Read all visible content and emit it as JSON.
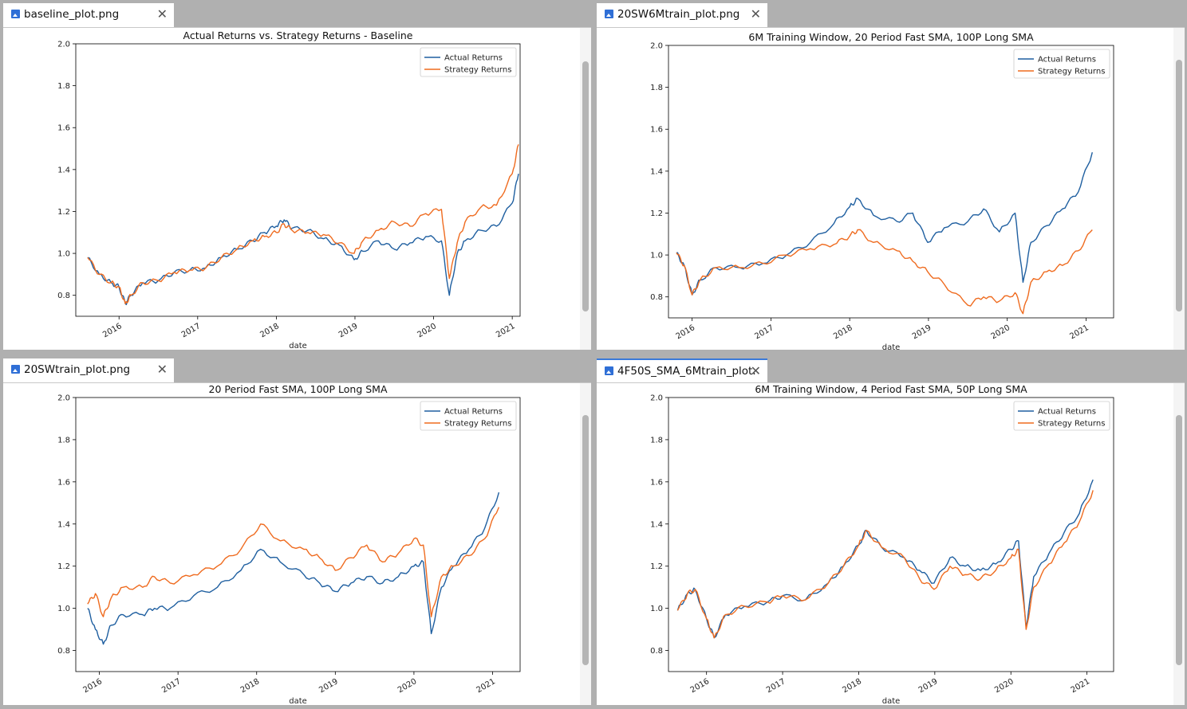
{
  "colors": {
    "actual": "#1f5fa0",
    "strategy": "#ef6b1f",
    "tab_active_accent": "#3b7ad9"
  },
  "panes": [
    {
      "tab_label": "baseline_plot.png",
      "tab_icon": "image-file-icon",
      "close_icon": "close-icon",
      "active": false
    },
    {
      "tab_label": "20SW6Mtrain_plot.png",
      "tab_icon": "image-file-icon",
      "close_icon": "close-icon",
      "active": false
    },
    {
      "tab_label": "20SWtrain_plot.png",
      "tab_icon": "image-file-icon",
      "close_icon": "close-icon",
      "active": false
    },
    {
      "tab_label": "4F50S_SMA_6Mtrain_plot.",
      "tab_icon": "image-file-icon",
      "close_icon": "close-icon",
      "active": true
    }
  ],
  "chart_data": [
    {
      "type": "line",
      "title": "Actual Returns vs. Strategy Returns - Baseline",
      "xlabel": "date",
      "ylabel": "",
      "ylim": [
        0.7,
        2.0
      ],
      "xlim": [
        2015.45,
        2021.1
      ],
      "yticks": [
        "0.8",
        "1.0",
        "1.2",
        "1.4",
        "1.6",
        "1.8",
        "2.0"
      ],
      "xticks": [
        "2016",
        "2017",
        "2018",
        "2019",
        "2020",
        "2021"
      ],
      "legend": "top-right",
      "series": [
        {
          "name": "Actual Returns",
          "x": [
            2015.6,
            2015.75,
            2015.9,
            2016.0,
            2016.08,
            2016.15,
            2016.3,
            2016.5,
            2016.7,
            2016.9,
            2017.1,
            2017.3,
            2017.5,
            2017.7,
            2017.85,
            2018.0,
            2018.1,
            2018.2,
            2018.4,
            2018.6,
            2018.8,
            2018.99,
            2019.1,
            2019.3,
            2019.5,
            2019.7,
            2019.9,
            2020.1,
            2020.2,
            2020.3,
            2020.4,
            2020.6,
            2020.8,
            2021.0,
            2021.08
          ],
          "y": [
            0.98,
            0.9,
            0.86,
            0.84,
            0.76,
            0.8,
            0.86,
            0.87,
            0.91,
            0.92,
            0.93,
            0.98,
            1.02,
            1.06,
            1.1,
            1.13,
            1.16,
            1.12,
            1.11,
            1.07,
            1.04,
            0.97,
            1.01,
            1.06,
            1.02,
            1.05,
            1.08,
            1.06,
            0.8,
            1.0,
            1.06,
            1.11,
            1.13,
            1.24,
            1.38
          ]
        },
        {
          "name": "Strategy Returns",
          "x": [
            2015.6,
            2015.75,
            2015.9,
            2016.0,
            2016.08,
            2016.15,
            2016.3,
            2016.5,
            2016.7,
            2016.9,
            2017.1,
            2017.3,
            2017.5,
            2017.7,
            2017.85,
            2018.0,
            2018.1,
            2018.2,
            2018.4,
            2018.6,
            2018.8,
            2018.99,
            2019.1,
            2019.3,
            2019.5,
            2019.7,
            2019.9,
            2020.1,
            2020.2,
            2020.3,
            2020.4,
            2020.6,
            2020.8,
            2021.0,
            2021.08
          ],
          "y": [
            0.98,
            0.9,
            0.86,
            0.84,
            0.76,
            0.8,
            0.86,
            0.87,
            0.91,
            0.92,
            0.93,
            0.98,
            1.02,
            1.06,
            1.08,
            1.1,
            1.14,
            1.11,
            1.1,
            1.09,
            1.05,
            1.0,
            1.06,
            1.11,
            1.15,
            1.13,
            1.19,
            1.21,
            0.88,
            1.05,
            1.15,
            1.22,
            1.23,
            1.38,
            1.52
          ]
        }
      ]
    },
    {
      "type": "line",
      "title": "6M Training Window, 20 Period Fast SMA, 100P Long SMA",
      "xlabel": "date",
      "ylabel": "",
      "ylim": [
        0.7,
        2.0
      ],
      "xlim": [
        2015.7,
        2021.35
      ],
      "yticks": [
        "0.8",
        "1.0",
        "1.2",
        "1.4",
        "1.6",
        "1.8",
        "2.0"
      ],
      "xticks": [
        "2016",
        "2017",
        "2018",
        "2019",
        "2020",
        "2021"
      ],
      "legend": "top-right",
      "series": [
        {
          "name": "Actual Returns",
          "x": [
            2015.8,
            2015.9,
            2016.0,
            2016.1,
            2016.3,
            2016.6,
            2016.9,
            2017.2,
            2017.5,
            2017.8,
            2018.0,
            2018.1,
            2018.3,
            2018.6,
            2018.8,
            2018.99,
            2019.2,
            2019.5,
            2019.7,
            2019.9,
            2020.1,
            2020.2,
            2020.3,
            2020.5,
            2020.7,
            2020.9,
            2021.08
          ],
          "y": [
            1.01,
            0.95,
            0.81,
            0.88,
            0.94,
            0.94,
            0.96,
            1.0,
            1.06,
            1.15,
            1.23,
            1.27,
            1.19,
            1.16,
            1.2,
            1.06,
            1.13,
            1.16,
            1.22,
            1.11,
            1.2,
            0.87,
            1.06,
            1.14,
            1.22,
            1.3,
            1.49
          ]
        },
        {
          "name": "Strategy Returns",
          "x": [
            2015.8,
            2015.9,
            2016.0,
            2016.1,
            2016.3,
            2016.6,
            2016.9,
            2017.2,
            2017.5,
            2017.8,
            2018.0,
            2018.1,
            2018.3,
            2018.6,
            2018.8,
            2018.99,
            2019.2,
            2019.5,
            2019.7,
            2019.9,
            2020.1,
            2020.2,
            2020.3,
            2020.5,
            2020.7,
            2020.9,
            2021.08
          ],
          "y": [
            1.01,
            0.95,
            0.81,
            0.88,
            0.94,
            0.94,
            0.96,
            1.0,
            1.03,
            1.05,
            1.09,
            1.12,
            1.06,
            1.02,
            0.97,
            0.92,
            0.86,
            0.76,
            0.8,
            0.78,
            0.82,
            0.72,
            0.87,
            0.92,
            0.95,
            1.02,
            1.12
          ]
        }
      ]
    },
    {
      "type": "line",
      "title": "20 Period Fast SMA, 100P Long SMA",
      "xlabel": "date",
      "ylabel": "",
      "ylim": [
        0.7,
        2.0
      ],
      "xlim": [
        2015.7,
        2021.35
      ],
      "yticks": [
        "0.8",
        "1.0",
        "1.2",
        "1.4",
        "1.6",
        "1.8",
        "2.0"
      ],
      "xticks": [
        "2016",
        "2017",
        "2018",
        "2019",
        "2020",
        "2021"
      ],
      "legend": "top-right",
      "series": [
        {
          "name": "Actual Returns",
          "x": [
            2015.85,
            2015.95,
            2016.05,
            2016.15,
            2016.3,
            2016.55,
            2016.7,
            2016.9,
            2017.2,
            2017.5,
            2017.8,
            2018.05,
            2018.3,
            2018.6,
            2018.8,
            2019.0,
            2019.2,
            2019.4,
            2019.6,
            2019.8,
            2020.0,
            2020.12,
            2020.22,
            2020.35,
            2020.5,
            2020.7,
            2020.9,
            2021.08
          ],
          "y": [
            1.0,
            0.9,
            0.83,
            0.92,
            0.97,
            0.97,
            1.0,
            1.0,
            1.06,
            1.1,
            1.18,
            1.28,
            1.22,
            1.16,
            1.12,
            1.08,
            1.12,
            1.15,
            1.12,
            1.15,
            1.2,
            1.22,
            0.88,
            1.1,
            1.2,
            1.28,
            1.38,
            1.55
          ]
        },
        {
          "name": "Strategy Returns",
          "x": [
            2015.85,
            2015.95,
            2016.05,
            2016.15,
            2016.3,
            2016.55,
            2016.7,
            2016.9,
            2017.2,
            2017.5,
            2017.8,
            2018.05,
            2018.3,
            2018.6,
            2018.8,
            2019.0,
            2019.2,
            2019.4,
            2019.6,
            2019.8,
            2020.0,
            2020.12,
            2020.22,
            2020.35,
            2020.5,
            2020.7,
            2020.9,
            2021.08
          ],
          "y": [
            1.02,
            1.07,
            0.96,
            1.05,
            1.1,
            1.1,
            1.15,
            1.12,
            1.16,
            1.2,
            1.28,
            1.4,
            1.32,
            1.28,
            1.24,
            1.18,
            1.24,
            1.3,
            1.22,
            1.26,
            1.33,
            1.3,
            0.96,
            1.15,
            1.2,
            1.25,
            1.33,
            1.48
          ]
        }
      ]
    },
    {
      "type": "line",
      "title": "6M Training Window, 4 Period Fast SMA, 50P Long SMA",
      "xlabel": "date",
      "ylabel": "",
      "ylim": [
        0.7,
        2.0
      ],
      "xlim": [
        2015.5,
        2021.35
      ],
      "yticks": [
        "0.8",
        "1.0",
        "1.2",
        "1.4",
        "1.6",
        "1.8",
        "2.0"
      ],
      "xticks": [
        "2016",
        "2017",
        "2018",
        "2019",
        "2020",
        "2021"
      ],
      "legend": "top-right",
      "series": [
        {
          "name": "Actual Returns",
          "x": [
            2015.62,
            2015.75,
            2015.85,
            2016.0,
            2016.1,
            2016.25,
            2016.5,
            2016.8,
            2017.0,
            2017.3,
            2017.6,
            2017.8,
            2018.0,
            2018.1,
            2018.3,
            2018.6,
            2018.8,
            2018.99,
            2019.2,
            2019.4,
            2019.6,
            2019.8,
            2020.0,
            2020.1,
            2020.2,
            2020.3,
            2020.5,
            2020.7,
            2020.9,
            2021.08
          ],
          "y": [
            0.99,
            1.07,
            1.09,
            0.95,
            0.86,
            0.97,
            1.01,
            1.03,
            1.06,
            1.04,
            1.12,
            1.2,
            1.3,
            1.37,
            1.29,
            1.24,
            1.18,
            1.12,
            1.24,
            1.2,
            1.18,
            1.21,
            1.28,
            1.32,
            0.91,
            1.15,
            1.26,
            1.36,
            1.45,
            1.61
          ]
        },
        {
          "name": "Strategy Returns",
          "x": [
            2015.62,
            2015.75,
            2015.85,
            2016.0,
            2016.1,
            2016.25,
            2016.5,
            2016.8,
            2017.0,
            2017.3,
            2017.6,
            2017.8,
            2018.0,
            2018.1,
            2018.3,
            2018.6,
            2018.8,
            2018.99,
            2019.2,
            2019.4,
            2019.6,
            2019.8,
            2020.0,
            2020.1,
            2020.2,
            2020.3,
            2020.5,
            2020.7,
            2020.9,
            2021.08
          ],
          "y": [
            0.99,
            1.07,
            1.09,
            0.95,
            0.86,
            0.97,
            1.01,
            1.03,
            1.06,
            1.04,
            1.12,
            1.2,
            1.3,
            1.37,
            1.29,
            1.24,
            1.14,
            1.09,
            1.2,
            1.16,
            1.14,
            1.18,
            1.24,
            1.28,
            0.9,
            1.1,
            1.21,
            1.31,
            1.41,
            1.56
          ]
        }
      ]
    }
  ]
}
